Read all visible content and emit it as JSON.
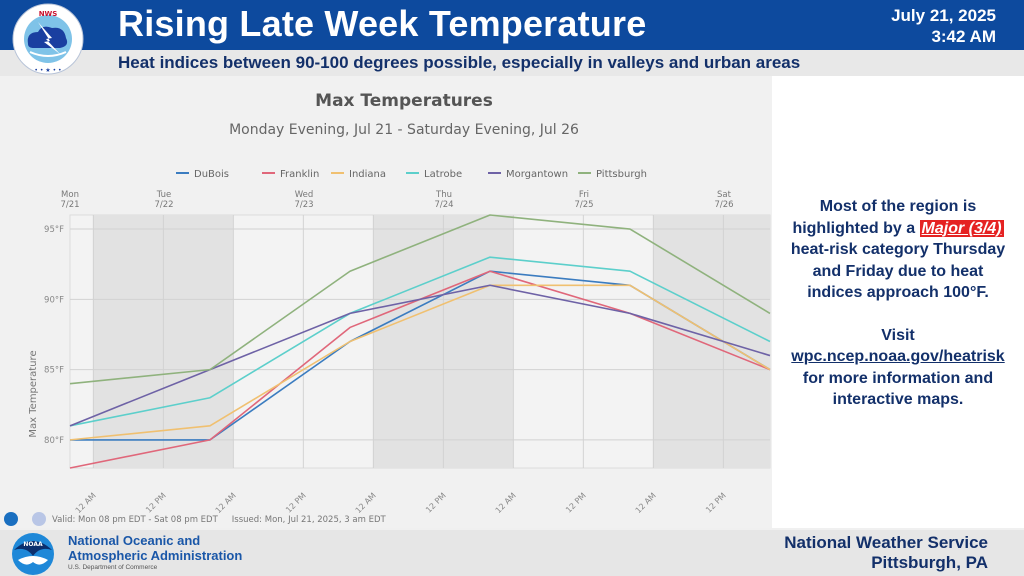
{
  "header": {
    "title": "Rising Late Week Temperature",
    "date": "July 21, 2025",
    "time": "3:42 AM",
    "subtitle": "Heat indices between 90-100 degrees possible, especially in valleys and urban areas",
    "logo_icon": "nws-logo-icon",
    "logo_text": "NATIONAL WEATHER SERVICE"
  },
  "side_panel": {
    "line1": "Most of the region is",
    "line2_prefix": "highlighted by a ",
    "major_badge": "Major (3/4)",
    "line3": "heat-risk category Thursday",
    "line4": "and Friday due to heat",
    "line5": "indices approach 100°F.",
    "visit": "Visit",
    "link": "wpc.ncep.noaa.gov/heatrisk",
    "line6": "for more information and",
    "line7": "interactive maps.",
    "major_color": "#e52222"
  },
  "chart_footer": {
    "valid": "Valid: Mon 08 pm EDT - Sat 08 pm EDT",
    "issued": "Issued: Mon, Jul 21, 2025, 3 am EDT"
  },
  "footer": {
    "noaa_line1": "National Oceanic and",
    "noaa_line2": "Atmospheric Administration",
    "noaa_dept": "U.S. Department of Commerce",
    "office_line1": "National Weather Service",
    "office_line2": "Pittsburgh, PA"
  },
  "chart_data": {
    "type": "line",
    "title": "Max Temperatures",
    "subtitle": "Monday Evening, Jul 21 - Saturday Evening, Jul 26",
    "xlabel": "",
    "ylabel": "Max Temperature",
    "x": [
      "Mon 8 PM",
      "Tue 8 PM",
      "Wed 8 PM",
      "Thu 8 PM",
      "Fri 8 PM",
      "Sat 8 PM"
    ],
    "day_labels": [
      {
        "day": "Mon",
        "date": "7/21",
        "pos": 0
      },
      {
        "day": "Tue",
        "date": "7/22",
        "pos": 0.6714
      },
      {
        "day": "Wed",
        "date": "7/23",
        "pos": 1.6714
      },
      {
        "day": "Thu",
        "date": "7/24",
        "pos": 2.6714
      },
      {
        "day": "Fri",
        "date": "7/25",
        "pos": 3.6714
      },
      {
        "day": "Sat",
        "date": "7/26",
        "pos": 4.6714
      }
    ],
    "hour_ticks": [
      "12 AM",
      "12 PM",
      "12 AM",
      "12 PM",
      "12 AM",
      "12 PM",
      "12 AM",
      "12 PM",
      "12 AM",
      "12 PM"
    ],
    "y_ticks": [
      "95°F",
      "90°F",
      "85°F",
      "80°F"
    ],
    "y_tick_values": [
      95,
      90,
      85,
      80
    ],
    "ylim": [
      78,
      96
    ],
    "grid": true,
    "legend_position": "top",
    "series": [
      {
        "name": "DuBois",
        "color": "#3b7cc0",
        "values": [
          80,
          80,
          87,
          92,
          91,
          85
        ]
      },
      {
        "name": "Franklin",
        "color": "#e0677a",
        "values": [
          78,
          80,
          88,
          92,
          89,
          85
        ]
      },
      {
        "name": "Indiana",
        "color": "#f0c070",
        "values": [
          80,
          81,
          87,
          91,
          91,
          85
        ]
      },
      {
        "name": "Latrobe",
        "color": "#5ccfcb",
        "values": [
          81,
          83,
          89,
          93,
          92,
          87
        ]
      },
      {
        "name": "Morgantown",
        "color": "#6e62a6",
        "values": [
          81,
          85,
          89,
          91,
          89,
          86
        ]
      },
      {
        "name": "Pittsburgh",
        "color": "#8fb27d",
        "values": [
          84,
          85,
          92,
          96,
          95,
          89
        ]
      }
    ]
  }
}
